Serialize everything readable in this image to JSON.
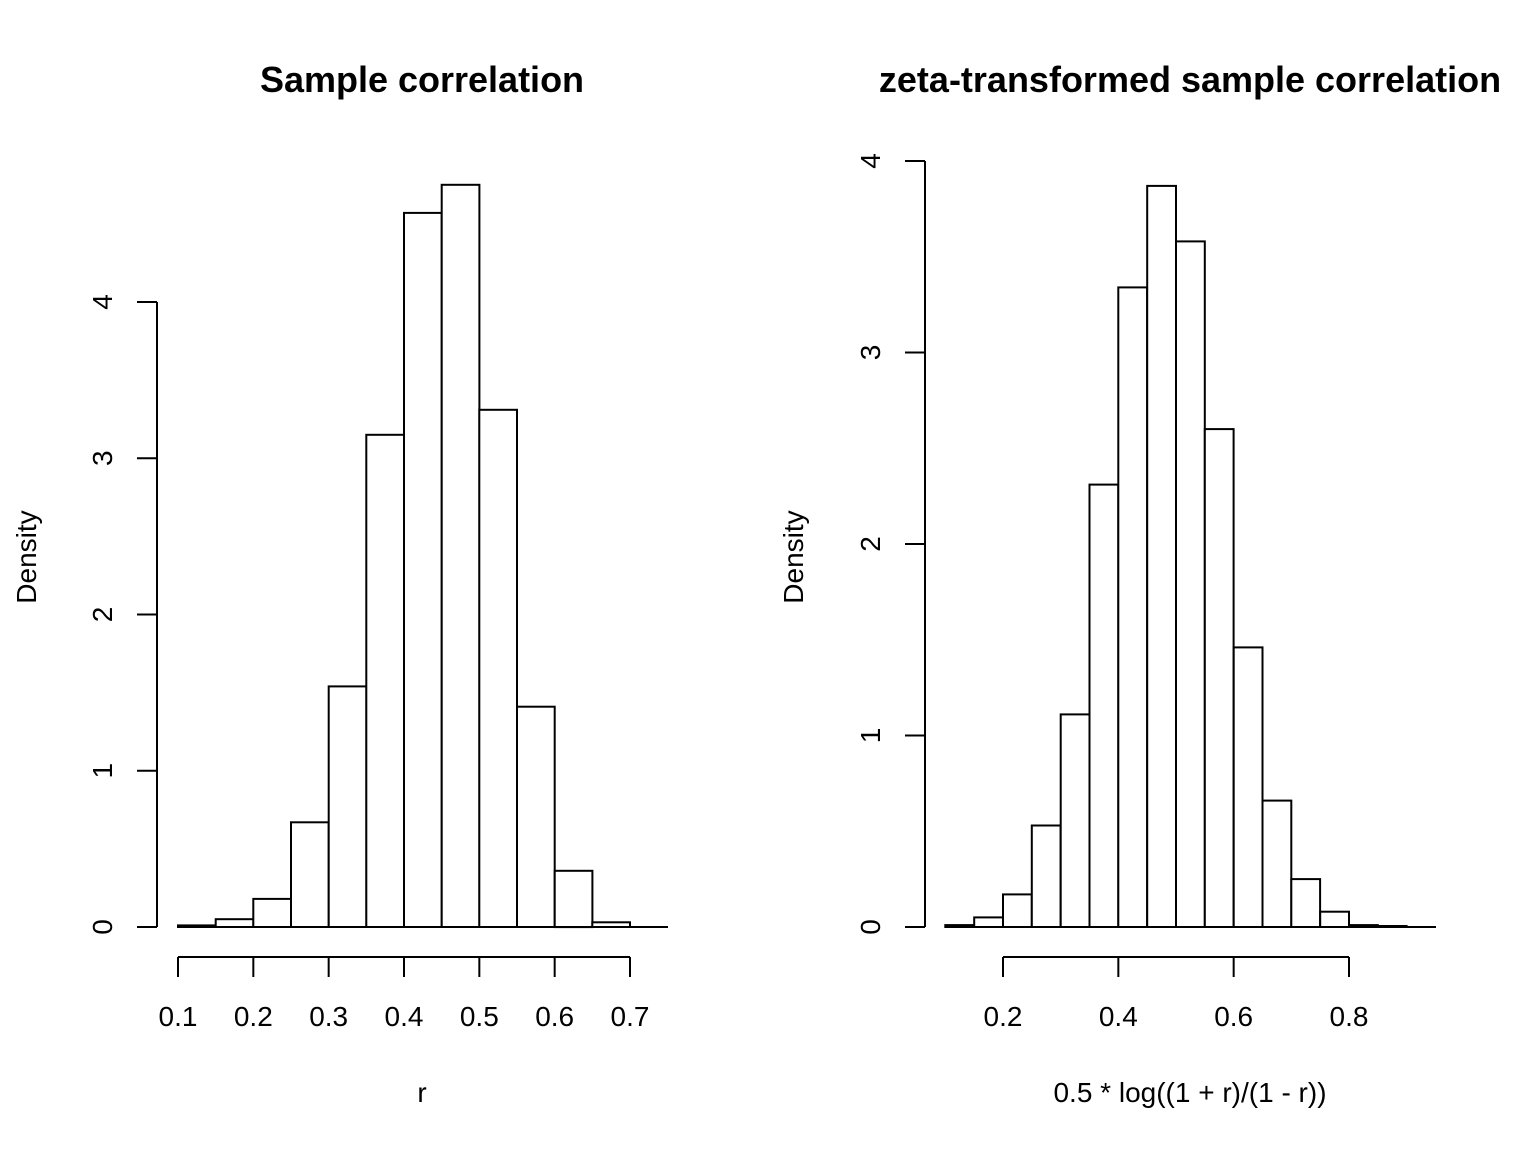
{
  "chart_data": [
    {
      "type": "bar",
      "title": "Sample correlation",
      "xlabel": "r",
      "ylabel": "Density",
      "xlim": [
        0.1,
        0.75
      ],
      "ylim": [
        0,
        4.7
      ],
      "x_ticks": [
        0.1,
        0.2,
        0.3,
        0.4,
        0.5,
        0.6,
        0.7
      ],
      "x_tick_labels": [
        "0.1",
        "0.2",
        "0.3",
        "0.4",
        "0.5",
        "0.6",
        "0.7"
      ],
      "y_ticks": [
        0,
        1,
        2,
        3,
        4
      ],
      "y_tick_labels": [
        "0",
        "1",
        "2",
        "3",
        "4"
      ],
      "bin_edges": [
        0.1,
        0.15,
        0.2,
        0.25,
        0.3,
        0.35,
        0.4,
        0.45,
        0.5,
        0.55,
        0.6,
        0.65,
        0.7,
        0.75
      ],
      "values": [
        0.01,
        0.05,
        0.18,
        0.67,
        1.54,
        3.15,
        4.57,
        4.75,
        3.31,
        1.41,
        0.36,
        0.03,
        0.0
      ],
      "grid": false
    },
    {
      "type": "bar",
      "title": "zeta-transformed sample correlation",
      "xlabel": "0.5 * log((1 + r)/(1 - r))",
      "ylabel": "Density",
      "xlim": [
        0.1,
        0.95
      ],
      "ylim": [
        0,
        4.0
      ],
      "x_ticks": [
        0.2,
        0.4,
        0.6,
        0.8
      ],
      "x_tick_labels": [
        "0.2",
        "0.4",
        "0.6",
        "0.8"
      ],
      "y_ticks": [
        0,
        1,
        2,
        3,
        4
      ],
      "y_tick_labels": [
        "0",
        "1",
        "2",
        "3",
        "4"
      ],
      "bin_edges": [
        0.1,
        0.15,
        0.2,
        0.25,
        0.3,
        0.35,
        0.4,
        0.45,
        0.5,
        0.55,
        0.6,
        0.65,
        0.7,
        0.75,
        0.8,
        0.85,
        0.9,
        0.95
      ],
      "values": [
        0.01,
        0.05,
        0.17,
        0.53,
        1.11,
        2.31,
        3.34,
        3.87,
        3.58,
        2.6,
        1.46,
        0.66,
        0.25,
        0.08,
        0.01,
        0.005,
        0.0
      ],
      "grid": false
    }
  ]
}
